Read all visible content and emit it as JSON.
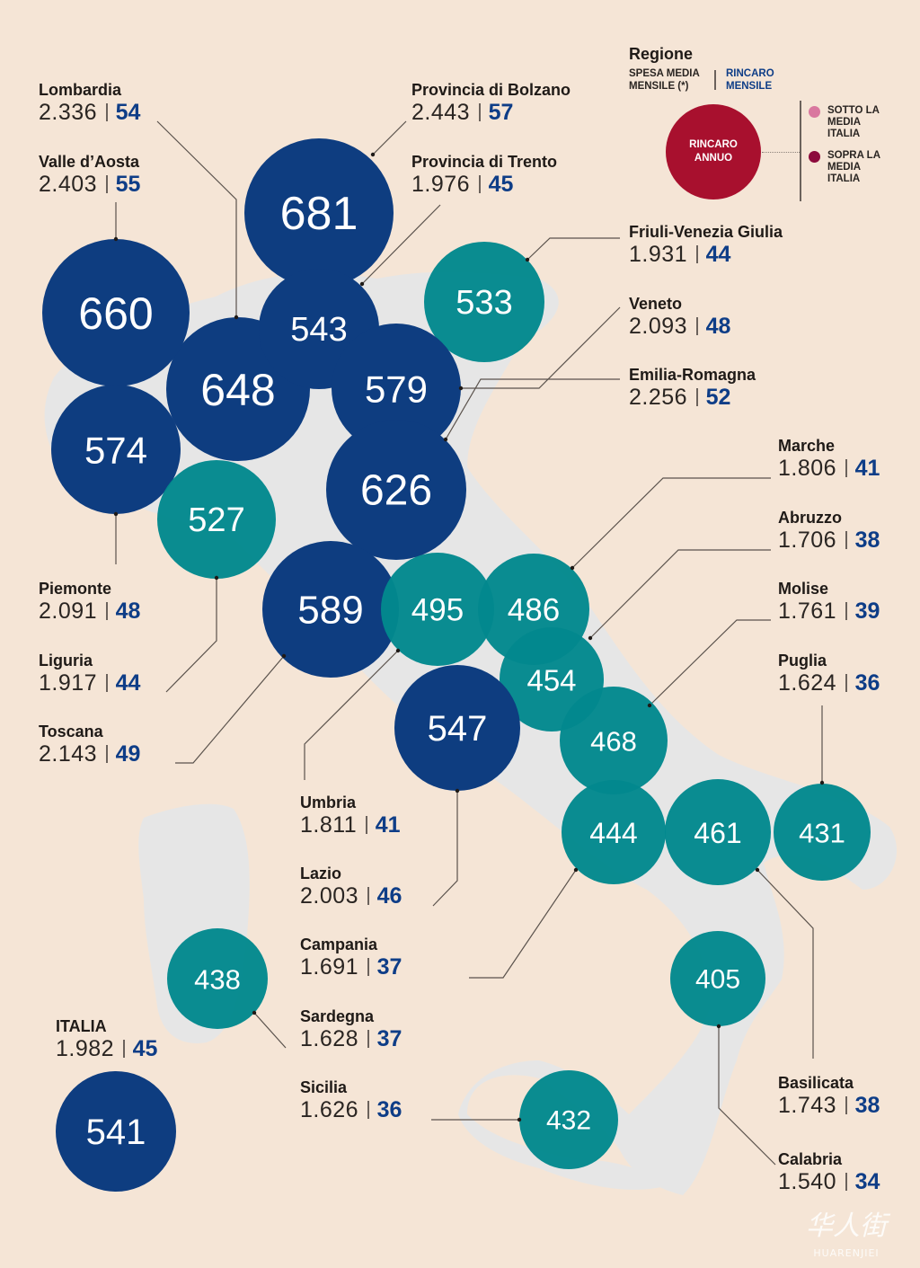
{
  "legend": {
    "title": "Regione",
    "spesa_label": "SPESA MEDIA MENSILE (*)",
    "rincaro_mensile_label": "RINCARO MENSILE",
    "rincaro_annuo_label": "RINCARO ANNUO",
    "below_label": "SOTTO LA MEDIA ITALIA",
    "above_label": "SOPRA LA MEDIA ITALIA",
    "below_color": "#d9779f",
    "above_color": "#8c0a3c"
  },
  "colors": {
    "above_bubble": "#0e3d80",
    "below_bubble": "#02888d",
    "background": "#f5e5d6",
    "land": "#e6e6e6"
  },
  "regions": [
    {
      "id": "lombardia",
      "name": "Lombardia",
      "spesa": "2.336",
      "rincaro_mensile": "54",
      "rincaro_annuo": "648",
      "status": "above"
    },
    {
      "id": "valle-d-aosta",
      "name": "Valle d’Aosta",
      "spesa": "2.403",
      "rincaro_mensile": "55",
      "rincaro_annuo": "660",
      "status": "above"
    },
    {
      "id": "bolzano",
      "name": "Provincia di Bolzano",
      "spesa": "2.443",
      "rincaro_mensile": "57",
      "rincaro_annuo": "681",
      "status": "above"
    },
    {
      "id": "trento",
      "name": "Provincia di Trento",
      "spesa": "1.976",
      "rincaro_mensile": "45",
      "rincaro_annuo": "543",
      "status": "above"
    },
    {
      "id": "friuli",
      "name": "Friuli-Venezia Giulia",
      "spesa": "1.931",
      "rincaro_mensile": "44",
      "rincaro_annuo": "533",
      "status": "below"
    },
    {
      "id": "veneto",
      "name": "Veneto",
      "spesa": "2.093",
      "rincaro_mensile": "48",
      "rincaro_annuo": "579",
      "status": "above"
    },
    {
      "id": "emilia-romagna",
      "name": "Emilia-Romagna",
      "spesa": "2.256",
      "rincaro_mensile": "52",
      "rincaro_annuo": "626",
      "status": "above"
    },
    {
      "id": "marche",
      "name": "Marche",
      "spesa": "1.806",
      "rincaro_mensile": "41",
      "rincaro_annuo": "486",
      "status": "below"
    },
    {
      "id": "abruzzo",
      "name": "Abruzzo",
      "spesa": "1.706",
      "rincaro_mensile": "38",
      "rincaro_annuo": "454",
      "status": "below"
    },
    {
      "id": "molise",
      "name": "Molise",
      "spesa": "1.761",
      "rincaro_mensile": "39",
      "rincaro_annuo": "468",
      "status": "below"
    },
    {
      "id": "puglia",
      "name": "Puglia",
      "spesa": "1.624",
      "rincaro_mensile": "36",
      "rincaro_annuo": "431",
      "status": "below"
    },
    {
      "id": "piemonte",
      "name": "Piemonte",
      "spesa": "2.091",
      "rincaro_mensile": "48",
      "rincaro_annuo": "574",
      "status": "above"
    },
    {
      "id": "liguria",
      "name": "Liguria",
      "spesa": "1.917",
      "rincaro_mensile": "44",
      "rincaro_annuo": "527",
      "status": "below"
    },
    {
      "id": "toscana",
      "name": "Toscana",
      "spesa": "2.143",
      "rincaro_mensile": "49",
      "rincaro_annuo": "589",
      "status": "above"
    },
    {
      "id": "umbria",
      "name": "Umbria",
      "spesa": "1.811",
      "rincaro_mensile": "41",
      "rincaro_annuo": "495",
      "status": "below"
    },
    {
      "id": "lazio",
      "name": "Lazio",
      "spesa": "2.003",
      "rincaro_mensile": "46",
      "rincaro_annuo": "547",
      "status": "above"
    },
    {
      "id": "campania",
      "name": "Campania",
      "spesa": "1.691",
      "rincaro_mensile": "37",
      "rincaro_annuo": "444",
      "status": "below"
    },
    {
      "id": "sardegna",
      "name": "Sardegna",
      "spesa": "1.628",
      "rincaro_mensile": "37",
      "rincaro_annuo": "438",
      "status": "below"
    },
    {
      "id": "sicilia",
      "name": "Sicilia",
      "spesa": "1.626",
      "rincaro_mensile": "36",
      "rincaro_annuo": "432",
      "status": "below"
    },
    {
      "id": "basilicata",
      "name": "Basilicata",
      "spesa": "1.743",
      "rincaro_mensile": "38",
      "rincaro_annuo": "461",
      "status": "below"
    },
    {
      "id": "calabria",
      "name": "Calabria",
      "spesa": "1.540",
      "rincaro_mensile": "34",
      "rincaro_annuo": "405",
      "status": "below"
    },
    {
      "id": "italia",
      "name": "ITALIA",
      "spesa": "1.982",
      "rincaro_mensile": "45",
      "rincaro_annuo": "541",
      "status": "above"
    }
  ],
  "watermark": {
    "text_cn": "华人街",
    "text_latin": "HUARENJIEI"
  }
}
